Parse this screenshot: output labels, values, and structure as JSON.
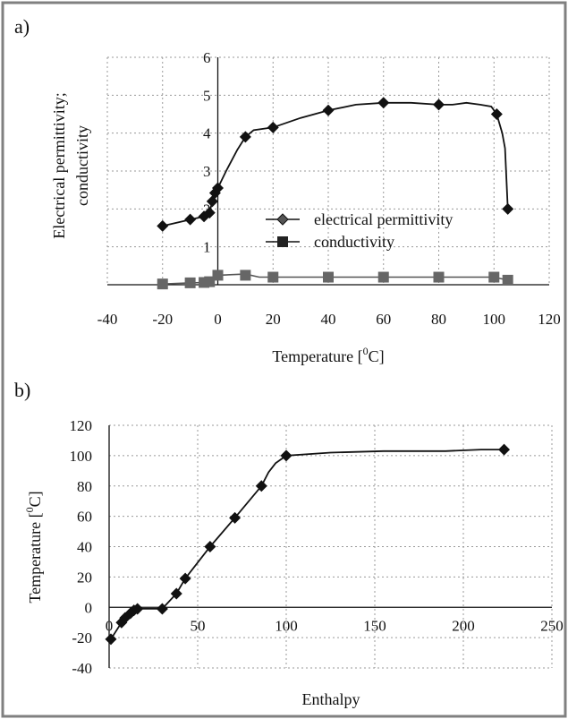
{
  "panel_labels": [
    "a)",
    "b)"
  ],
  "colors": {
    "frame": "#808080",
    "permittivity_marker": "#111111",
    "conductivity_marker": "#666666",
    "line": "#111111",
    "grid": "#9a9a9a"
  },
  "chart_data": [
    {
      "type": "line",
      "panel": "a)",
      "title": "",
      "xlabel": "Temperature [",
      "xlabel_sup": "0",
      "xlabel_suffix": "C]",
      "ylabel_lines": [
        "Electrical permittivity;",
        "conductivity"
      ],
      "xlim": [
        -40,
        120
      ],
      "ylim": [
        0,
        6
      ],
      "xticks": [
        -40,
        -20,
        0,
        20,
        40,
        60,
        80,
        100,
        120
      ],
      "yticks": [
        1,
        2,
        3,
        4,
        5,
        6
      ],
      "ytick_labels": [
        "1",
        "2",
        "3",
        "4",
        "5",
        "6"
      ],
      "grid": true,
      "legend_position": "center-right",
      "series": [
        {
          "name": "electrical permittivity",
          "marker": "diamond",
          "x": [
            -20,
            -10,
            -5,
            -3,
            -2,
            -1,
            0,
            10,
            20,
            40,
            60,
            80,
            101,
            105
          ],
          "y": [
            1.55,
            1.72,
            1.8,
            1.9,
            2.2,
            2.42,
            2.55,
            3.9,
            4.15,
            4.6,
            4.8,
            4.75,
            4.5,
            2.0
          ],
          "curve_x": [
            -20,
            -10,
            -5,
            -3,
            -2,
            -1,
            0,
            3,
            7,
            10,
            13,
            20,
            30,
            40,
            50,
            60,
            70,
            80,
            85,
            90,
            95,
            99,
            101,
            103,
            104,
            105
          ],
          "curve_y": [
            1.55,
            1.72,
            1.8,
            1.9,
            2.2,
            2.42,
            2.55,
            3.0,
            3.55,
            3.9,
            4.08,
            4.15,
            4.4,
            4.6,
            4.75,
            4.8,
            4.8,
            4.75,
            4.75,
            4.8,
            4.75,
            4.7,
            4.5,
            4.0,
            3.6,
            2.0
          ]
        },
        {
          "name": "conductivity",
          "marker": "square",
          "x": [
            -20,
            -10,
            -5,
            -3,
            0,
            10,
            20,
            40,
            60,
            80,
            100,
            105
          ],
          "y": [
            0.02,
            0.05,
            0.06,
            0.08,
            0.25,
            0.25,
            0.2,
            0.2,
            0.2,
            0.2,
            0.2,
            0.12
          ],
          "curve_x": [
            -20,
            -10,
            -5,
            -3,
            0,
            10,
            15,
            20,
            40,
            60,
            80,
            100,
            105
          ],
          "curve_y": [
            0.02,
            0.05,
            0.06,
            0.08,
            0.25,
            0.28,
            0.2,
            0.2,
            0.2,
            0.2,
            0.2,
            0.2,
            0.12
          ]
        }
      ]
    },
    {
      "type": "line",
      "panel": "b)",
      "title": "",
      "xlabel": "Enthalpy",
      "ylabel": "Temperature [",
      "ylabel_sup": "0",
      "ylabel_suffix": "C]",
      "xlim": [
        0,
        250
      ],
      "ylim": [
        -40,
        120
      ],
      "xticks": [
        0,
        50,
        100,
        150,
        200,
        250
      ],
      "yticks": [
        -40,
        -20,
        0,
        20,
        40,
        60,
        80,
        100,
        120
      ],
      "grid": true,
      "series": [
        {
          "name": "",
          "marker": "diamond",
          "x": [
            1,
            7,
            9,
            12,
            14,
            16,
            30,
            38,
            43,
            57,
            71,
            86,
            100,
            223
          ],
          "y": [
            -21,
            -10,
            -7,
            -4,
            -2,
            -1,
            -1,
            9,
            19,
            40,
            59,
            80,
            100,
            104
          ],
          "curve_x": [
            1,
            7,
            9,
            12,
            14,
            16,
            30,
            38,
            43,
            57,
            71,
            86,
            90,
            94,
            100,
            125,
            155,
            190,
            210,
            223
          ],
          "curve_y": [
            -21,
            -10,
            -7,
            -4,
            -2,
            -1,
            -1,
            9,
            19,
            40,
            59,
            80,
            89,
            95,
            100,
            102,
            103,
            103,
            104,
            104
          ]
        }
      ]
    }
  ]
}
